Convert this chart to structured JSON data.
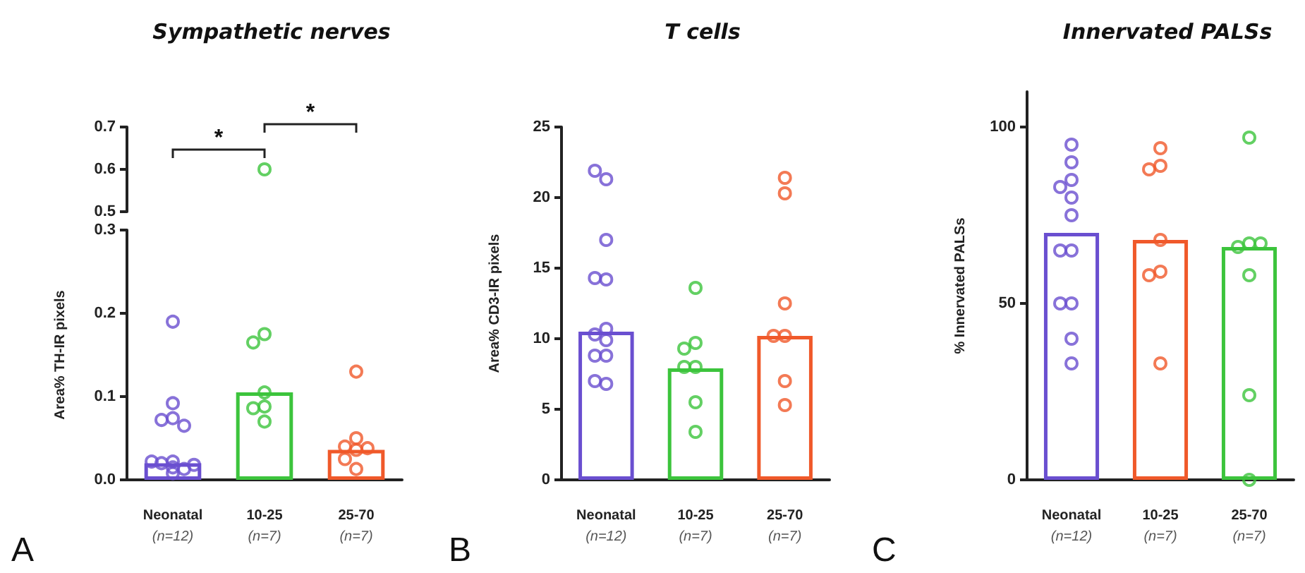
{
  "chart_data": [
    {
      "type": "scatter",
      "title": "Sympathetic nerves",
      "categories": [
        "Neonatal\n(n=12)",
        "10-25\n(n=7)",
        "25-70\n(n=7)"
      ],
      "ylim": [
        0.5,
        0.7
      ],
      "yticks": [
        0.5,
        0.6,
        0.7
      ],
      "tick_labels": "y",
      "marker": "circle",
      "annotations": [
        "*",
        "*"
      ],
      "series": [
        {
          "x": [
            "10-25\n(n=7)"
          ],
          "values": [
            0.6
          ],
          "color": "#3cc43c"
        }
      ]
    },
    {
      "type": "bar",
      "ylabel": "Area% TH-IR pixels",
      "categories": [
        "Neonatal\n(n=12)",
        "10-25\n(n=7)",
        "25-70\n(n=7)"
      ],
      "ylim": [
        0,
        0.3
      ],
      "yticks": [
        {
          "value": 0,
          "label": "0.0"
        },
        0.1,
        0.2,
        0.3
      ],
      "marker": "circle",
      "annotations": [
        "A"
      ],
      "series": [
        {
          "values": [
            0.02,
            0.105,
            0.036
          ],
          "colors": [
            "#6a4fd0",
            "#3cc43c",
            "#f0592a"
          ]
        },
        {
          "type": "scatter",
          "x": [
            "Neonatal\n(n=12)",
            "Neonatal\n(n=12)",
            "Neonatal\n(n=12)",
            "Neonatal\n(n=12)",
            "Neonatal\n(n=12)",
            "Neonatal\n(n=12)",
            "Neonatal\n(n=12)",
            "Neonatal\n(n=12)",
            "Neonatal\n(n=12)",
            "Neonatal\n(n=12)",
            "Neonatal\n(n=12)",
            "Neonatal\n(n=12)",
            "10-25\n(n=7)",
            "10-25\n(n=7)",
            "10-25\n(n=7)",
            "10-25\n(n=7)",
            "10-25\n(n=7)",
            "10-25\n(n=7)",
            "25-70\n(n=7)",
            "25-70\n(n=7)",
            "25-70\n(n=7)",
            "25-70\n(n=7)",
            "25-70\n(n=7)",
            "25-70\n(n=7)",
            "25-70\n(n=7)"
          ],
          "values": [
            0.19,
            0.092,
            0.074,
            0.072,
            0.065,
            0.022,
            0.02,
            0.013,
            0.022,
            0.018,
            0.008,
            0.015,
            0.175,
            0.165,
            0.105,
            0.088,
            0.086,
            0.07,
            0.13,
            0.05,
            0.04,
            0.038,
            0.036,
            0.025,
            0.013
          ],
          "colors": [
            "#6a4fd0",
            "#6a4fd0",
            "#6a4fd0",
            "#6a4fd0",
            "#6a4fd0",
            "#6a4fd0",
            "#6a4fd0",
            "#6a4fd0",
            "#6a4fd0",
            "#6a4fd0",
            "#6a4fd0",
            "#6a4fd0",
            "#3cc43c",
            "#3cc43c",
            "#3cc43c",
            "#3cc43c",
            "#3cc43c",
            "#3cc43c",
            "#f0592a",
            "#f0592a",
            "#f0592a",
            "#f0592a",
            "#f0592a",
            "#f0592a",
            "#f0592a"
          ]
        }
      ]
    },
    {
      "type": "bar",
      "title": "T cells",
      "ylabel": "Area% CD3-IR pixels",
      "categories": [
        "Neonatal\n(n=12)",
        "10-25\n(n=7)",
        "25-70\n(n=7)"
      ],
      "ylim": [
        0,
        25
      ],
      "yticks": [
        0,
        5,
        10,
        15,
        20,
        25
      ],
      "marker": "circle",
      "annotations": [
        "B"
      ],
      "series": [
        {
          "values": [
            10.5,
            7.9,
            10.2
          ],
          "colors": [
            "#6a4fd0",
            "#3cc43c",
            "#f0592a"
          ]
        },
        {
          "type": "scatter",
          "x": [
            "Neonatal\n(n=12)",
            "Neonatal\n(n=12)",
            "Neonatal\n(n=12)",
            "Neonatal\n(n=12)",
            "Neonatal\n(n=12)",
            "Neonatal\n(n=12)",
            "Neonatal\n(n=12)",
            "Neonatal\n(n=12)",
            "Neonatal\n(n=12)",
            "Neonatal\n(n=12)",
            "Neonatal\n(n=12)",
            "Neonatal\n(n=12)",
            "10-25\n(n=7)",
            "10-25\n(n=7)",
            "10-25\n(n=7)",
            "10-25\n(n=7)",
            "10-25\n(n=7)",
            "10-25\n(n=7)",
            "10-25\n(n=7)",
            "25-70\n(n=7)",
            "25-70\n(n=7)",
            "25-70\n(n=7)",
            "25-70\n(n=7)",
            "25-70\n(n=7)",
            "25-70\n(n=7)",
            "25-70\n(n=7)"
          ],
          "values": [
            21.3,
            21.9,
            17,
            14.2,
            14.3,
            10.7,
            10.3,
            9.9,
            8.8,
            8.8,
            6.8,
            7,
            13.6,
            9.7,
            9.3,
            8,
            8,
            5.5,
            3.4,
            21.4,
            20.3,
            12.5,
            10.2,
            10.2,
            7,
            5.3
          ],
          "colors": [
            "#6a4fd0",
            "#6a4fd0",
            "#6a4fd0",
            "#6a4fd0",
            "#6a4fd0",
            "#6a4fd0",
            "#6a4fd0",
            "#6a4fd0",
            "#6a4fd0",
            "#6a4fd0",
            "#6a4fd0",
            "#6a4fd0",
            "#3cc43c",
            "#3cc43c",
            "#3cc43c",
            "#3cc43c",
            "#3cc43c",
            "#3cc43c",
            "#3cc43c",
            "#f0592a",
            "#f0592a",
            "#f0592a",
            "#f0592a",
            "#f0592a",
            "#f0592a",
            "#f0592a"
          ]
        }
      ]
    },
    {
      "type": "bar",
      "title": "Innervated PALSs",
      "ylabel": "% Innervated PALSs",
      "categories": [
        "Neonatal\n(n=12)",
        "10-25\n(n=7)",
        "25-70\n(n=7)"
      ],
      "ylim": [
        0,
        110
      ],
      "yticks": [
        0,
        50,
        100
      ],
      "marker": "circle",
      "annotations": [
        "C"
      ],
      "series": [
        {
          "values": [
            70,
            68,
            66
          ],
          "colors": [
            "#6a4fd0",
            "#f0592a",
            "#3cc43c"
          ]
        },
        {
          "type": "scatter",
          "x": [
            "Neonatal\n(n=12)",
            "Neonatal\n(n=12)",
            "Neonatal\n(n=12)",
            "Neonatal\n(n=12)",
            "Neonatal\n(n=12)",
            "Neonatal\n(n=12)",
            "Neonatal\n(n=12)",
            "Neonatal\n(n=12)",
            "Neonatal\n(n=12)",
            "Neonatal\n(n=12)",
            "Neonatal\n(n=12)",
            "Neonatal\n(n=12)",
            "10-25\n(n=7)",
            "10-25\n(n=7)",
            "10-25\n(n=7)",
            "10-25\n(n=7)",
            "10-25\n(n=7)",
            "10-25\n(n=7)",
            "10-25\n(n=7)",
            "25-70\n(n=7)",
            "25-70\n(n=7)",
            "25-70\n(n=7)",
            "25-70\n(n=7)",
            "25-70\n(n=7)",
            "25-70\n(n=7)",
            "25-70\n(n=7)"
          ],
          "values": [
            95,
            90,
            85,
            83,
            80,
            75,
            65,
            65,
            50,
            50,
            40,
            33,
            94,
            89,
            88,
            68,
            59,
            58,
            33,
            97,
            67,
            66,
            67,
            58,
            24,
            0
          ],
          "colors": [
            "#6a4fd0",
            "#6a4fd0",
            "#6a4fd0",
            "#6a4fd0",
            "#6a4fd0",
            "#6a4fd0",
            "#6a4fd0",
            "#6a4fd0",
            "#6a4fd0",
            "#6a4fd0",
            "#6a4fd0",
            "#6a4fd0",
            "#f0592a",
            "#f0592a",
            "#f0592a",
            "#f0592a",
            "#f0592a",
            "#f0592a",
            "#f0592a",
            "#3cc43c",
            "#3cc43c",
            "#3cc43c",
            "#3cc43c",
            "#3cc43c",
            "#3cc43c",
            "#3cc43c"
          ]
        }
      ]
    }
  ]
}
